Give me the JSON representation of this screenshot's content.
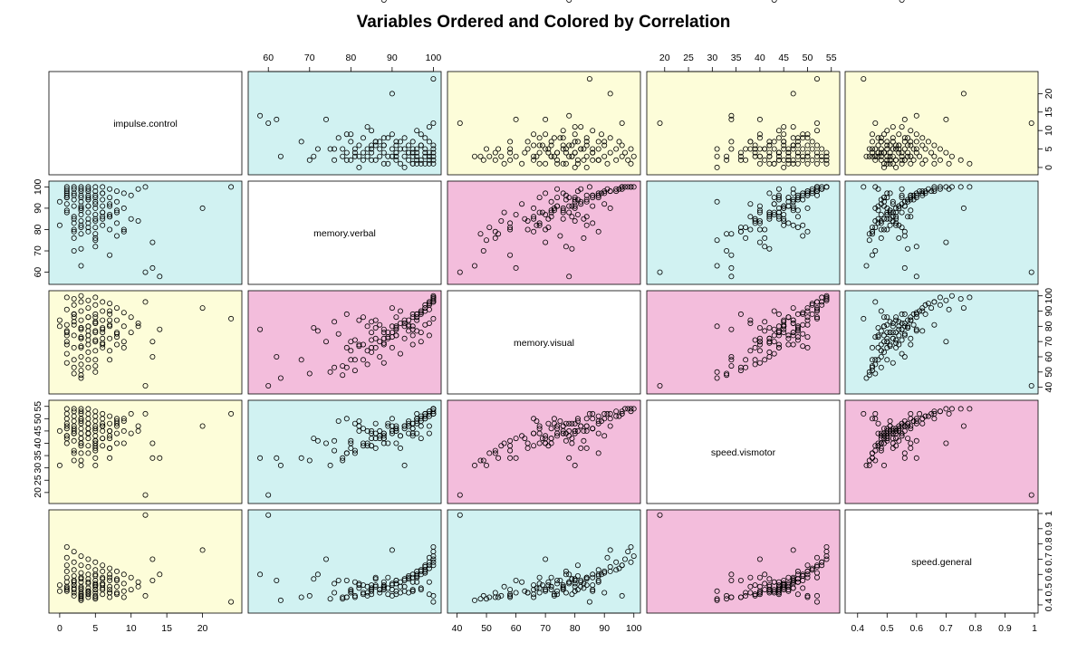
{
  "chart_data": {
    "type": "scatter",
    "title": "Variables Ordered and Colored by Correlation",
    "variables": [
      "impulse.control",
      "memory.verbal",
      "memory.visual",
      "speed.vismotor",
      "speed.general"
    ],
    "ranges": {
      "impulse.control": [
        -1,
        25
      ],
      "memory.verbal": [
        56,
        101
      ],
      "memory.visual": [
        38,
        101
      ],
      "speed.vismotor": [
        17,
        56
      ],
      "speed.general": [
        0.37,
        1.0
      ]
    },
    "ticks": {
      "impulse.control": [
        0,
        5,
        10,
        15,
        20
      ],
      "memory.verbal": [
        60,
        70,
        80,
        90,
        100
      ],
      "memory.visual": [
        40,
        50,
        60,
        70,
        80,
        90,
        100
      ],
      "speed.vismotor": [
        20,
        25,
        30,
        35,
        40,
        45,
        50,
        55
      ],
      "speed.general": [
        0.4,
        0.5,
        0.6,
        0.7,
        0.8,
        0.9,
        1.0
      ]
    },
    "top_axis_vars": [
      "memory.verbal",
      "speed.vismotor"
    ],
    "bottom_axis_vars": [
      "impulse.control",
      "memory.visual",
      "speed.general"
    ],
    "left_axis_vars": [
      "memory.verbal",
      "speed.vismotor"
    ],
    "right_axis_vars": [
      "impulse.control",
      "memory.visual",
      "speed.general"
    ],
    "correlation_colors": {
      "low": "#fdfdd9",
      "medium": "#d1f2f2",
      "high": "#f3bddc",
      "diagonal": "#ffffff"
    },
    "panel_colors": [
      [
        "diagonal",
        "medium",
        "low",
        "low",
        "low"
      ],
      [
        "medium",
        "diagonal",
        "high",
        "medium",
        "medium"
      ],
      [
        "low",
        "high",
        "diagonal",
        "high",
        "medium"
      ],
      [
        "low",
        "medium",
        "high",
        "diagonal",
        "high"
      ],
      [
        "low",
        "medium",
        "medium",
        "high",
        "diagonal"
      ]
    ],
    "points": {
      "impulse.control": [
        0,
        1,
        1,
        1,
        1,
        1,
        1,
        1,
        2,
        2,
        2,
        2,
        2,
        2,
        2,
        2,
        2,
        3,
        3,
        3,
        3,
        3,
        3,
        3,
        3,
        3,
        3,
        3,
        3,
        4,
        4,
        4,
        4,
        4,
        4,
        4,
        4,
        4,
        5,
        5,
        5,
        5,
        5,
        5,
        5,
        5,
        5,
        5,
        6,
        6,
        6,
        6,
        6,
        6,
        7,
        7,
        7,
        7,
        7,
        7,
        8,
        8,
        8,
        8,
        9,
        9,
        9,
        10,
        10,
        11,
        12,
        12,
        13,
        13,
        14,
        20,
        24,
        0,
        1,
        2,
        3,
        4,
        5,
        6,
        1,
        2,
        3,
        4,
        5,
        6,
        7,
        8,
        2,
        3,
        4,
        5,
        6,
        7,
        9,
        11,
        1,
        2,
        3,
        4,
        5,
        7,
        8,
        3,
        4,
        5,
        6
      ],
      "memory.verbal": [
        82,
        100,
        99,
        98,
        96,
        95,
        92,
        88,
        100,
        99,
        97,
        94,
        91,
        86,
        80,
        76,
        70,
        100,
        99,
        98,
        96,
        95,
        93,
        90,
        87,
        84,
        81,
        78,
        63,
        100,
        98,
        96,
        94,
        91,
        88,
        85,
        83,
        79,
        100,
        98,
        96,
        93,
        90,
        87,
        84,
        81,
        78,
        75,
        100,
        97,
        94,
        91,
        88,
        85,
        99,
        95,
        91,
        86,
        80,
        68,
        98,
        93,
        88,
        83,
        97,
        90,
        80,
        96,
        85,
        99,
        60,
        100,
        74,
        62,
        58,
        90,
        100,
        93,
        89,
        96,
        89,
        99,
        92,
        86,
        97,
        83,
        90,
        95,
        72,
        82,
        92,
        77,
        85,
        91,
        81,
        95,
        88,
        86,
        79,
        84,
        95,
        79,
        82,
        94,
        76,
        87,
        89,
        71,
        91,
        85,
        97,
        88
      ],
      "memory.visual": [
        84,
        99,
        91,
        81,
        77,
        68,
        62,
        56,
        98,
        94,
        88,
        81,
        74,
        66,
        58,
        53,
        49,
        100,
        96,
        90,
        84,
        78,
        72,
        66,
        60,
        55,
        51,
        48,
        46,
        97,
        92,
        86,
        80,
        74,
        68,
        63,
        58,
        53,
        99,
        94,
        88,
        82,
        76,
        70,
        64,
        58,
        54,
        50,
        96,
        90,
        84,
        78,
        72,
        66,
        95,
        88,
        80,
        72,
        64,
        58,
        92,
        84,
        76,
        68,
        89,
        80,
        70,
        86,
        76,
        82,
        41,
        96,
        70,
        60,
        78,
        92,
        85,
        80,
        76,
        88,
        72,
        74,
        82,
        79,
        70,
        86,
        73,
        80,
        77,
        68,
        90,
        75,
        83,
        79,
        71,
        86,
        69,
        84,
        66,
        80,
        74,
        88,
        67,
        77,
        83,
        81,
        73,
        79,
        86,
        71,
        76,
        78
      ],
      "speed.vismotor": [
        45,
        54,
        52,
        50,
        48,
        46,
        43,
        40,
        54,
        53,
        51,
        49,
        47,
        44,
        41,
        37,
        33,
        54,
        53,
        52,
        50,
        48,
        46,
        44,
        42,
        39,
        36,
        33,
        31,
        54,
        52,
        50,
        48,
        46,
        44,
        42,
        39,
        36,
        53,
        51,
        49,
        47,
        45,
        43,
        40,
        37,
        34,
        31,
        52,
        50,
        47,
        45,
        42,
        39,
        51,
        48,
        45,
        42,
        38,
        34,
        50,
        47,
        44,
        40,
        49,
        45,
        40,
        52,
        44,
        47,
        19,
        52,
        40,
        34,
        34,
        47,
        52,
        31,
        47,
        44,
        40,
        44,
        38,
        48,
        42,
        46,
        50,
        44,
        41,
        47,
        43,
        49,
        45,
        40,
        48,
        46,
        42,
        38,
        50,
        45,
        43,
        36,
        49,
        44,
        41,
        45,
        48,
        42,
        46,
        39,
        47,
        43
      ],
      "speed.general": [
        0.53,
        0.78,
        0.71,
        0.66,
        0.62,
        0.58,
        0.55,
        0.52,
        0.75,
        0.68,
        0.63,
        0.59,
        0.56,
        0.53,
        0.5,
        0.48,
        0.46,
        0.72,
        0.66,
        0.61,
        0.58,
        0.55,
        0.52,
        0.5,
        0.48,
        0.46,
        0.45,
        0.44,
        0.43,
        0.7,
        0.65,
        0.6,
        0.57,
        0.54,
        0.51,
        0.49,
        0.47,
        0.45,
        0.68,
        0.63,
        0.59,
        0.56,
        0.53,
        0.5,
        0.48,
        0.46,
        0.45,
        0.44,
        0.66,
        0.62,
        0.58,
        0.54,
        0.5,
        0.47,
        0.64,
        0.6,
        0.56,
        0.52,
        0.48,
        0.45,
        0.62,
        0.57,
        0.52,
        0.48,
        0.6,
        0.54,
        0.49,
        0.58,
        0.5,
        0.55,
        0.99,
        0.46,
        0.7,
        0.56,
        0.6,
        0.76,
        0.42,
        0.49,
        0.51,
        0.55,
        0.58,
        0.47,
        0.52,
        0.57,
        0.5,
        0.53,
        0.46,
        0.49,
        0.6,
        0.54,
        0.48,
        0.56,
        0.51,
        0.47,
        0.55,
        0.5,
        0.53,
        0.58,
        0.45,
        0.52,
        0.49,
        0.56,
        0.51,
        0.48,
        0.54,
        0.5,
        0.47,
        0.57,
        0.49,
        0.53,
        0.51,
        0.55
      ]
    }
  }
}
